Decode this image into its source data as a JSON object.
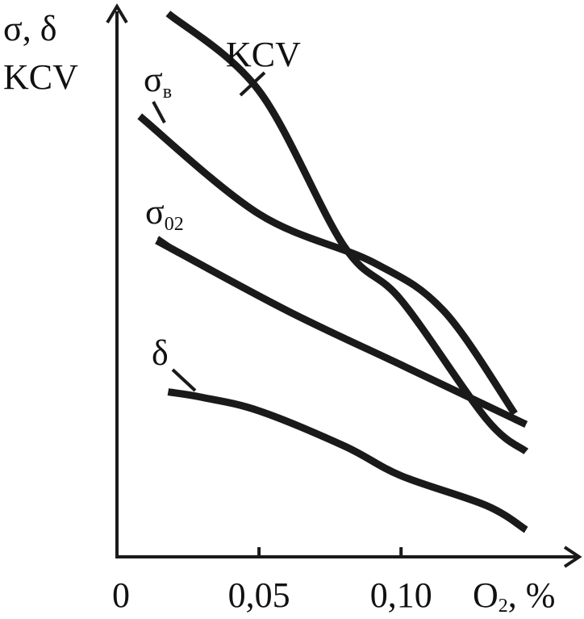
{
  "chart_data": {
    "type": "line",
    "title": "",
    "ylabel_line1": "σ, δ",
    "ylabel_line2": "KCV",
    "xlabel_main": "O",
    "xlabel_sub": "2",
    "xlabel_suffix": ", %",
    "origin_label": "0",
    "xticks": [
      {
        "value": 0.05,
        "label": "0,05"
      },
      {
        "value": 0.1,
        "label": "0,10"
      }
    ],
    "xlim": [
      0,
      0.159
    ],
    "ylim": [
      0,
      100
    ],
    "y_tick_labels": false,
    "grid": false,
    "series": [
      {
        "name": "KCV",
        "label_main": "KCV",
        "label_sub": "",
        "x": [
          0.018,
          0.05,
          0.08,
          0.1,
          0.13,
          0.144
        ],
        "y": [
          100.5,
          86.2,
          57.4,
          47.5,
          25.5,
          19.5
        ]
      },
      {
        "name": "σв",
        "label_main": "σ",
        "label_sub": "в",
        "x": [
          0.008,
          0.05,
          0.09,
          0.115,
          0.14
        ],
        "y": [
          81.5,
          63.4,
          54.5,
          45.5,
          26.5
        ]
      },
      {
        "name": "σ02",
        "label_main": "σ",
        "label_sub": "02",
        "x": [
          0.014,
          0.06,
          0.1,
          0.144
        ],
        "y": [
          58.5,
          45.5,
          35.5,
          24.5
        ]
      },
      {
        "name": "δ",
        "label_main": "δ",
        "label_sub": "",
        "x": [
          0.018,
          0.03,
          0.05,
          0.08,
          0.1,
          0.13,
          0.144
        ],
        "y": [
          30.5,
          29.5,
          27.0,
          20.5,
          15.0,
          9.5,
          5.0
        ]
      }
    ]
  }
}
